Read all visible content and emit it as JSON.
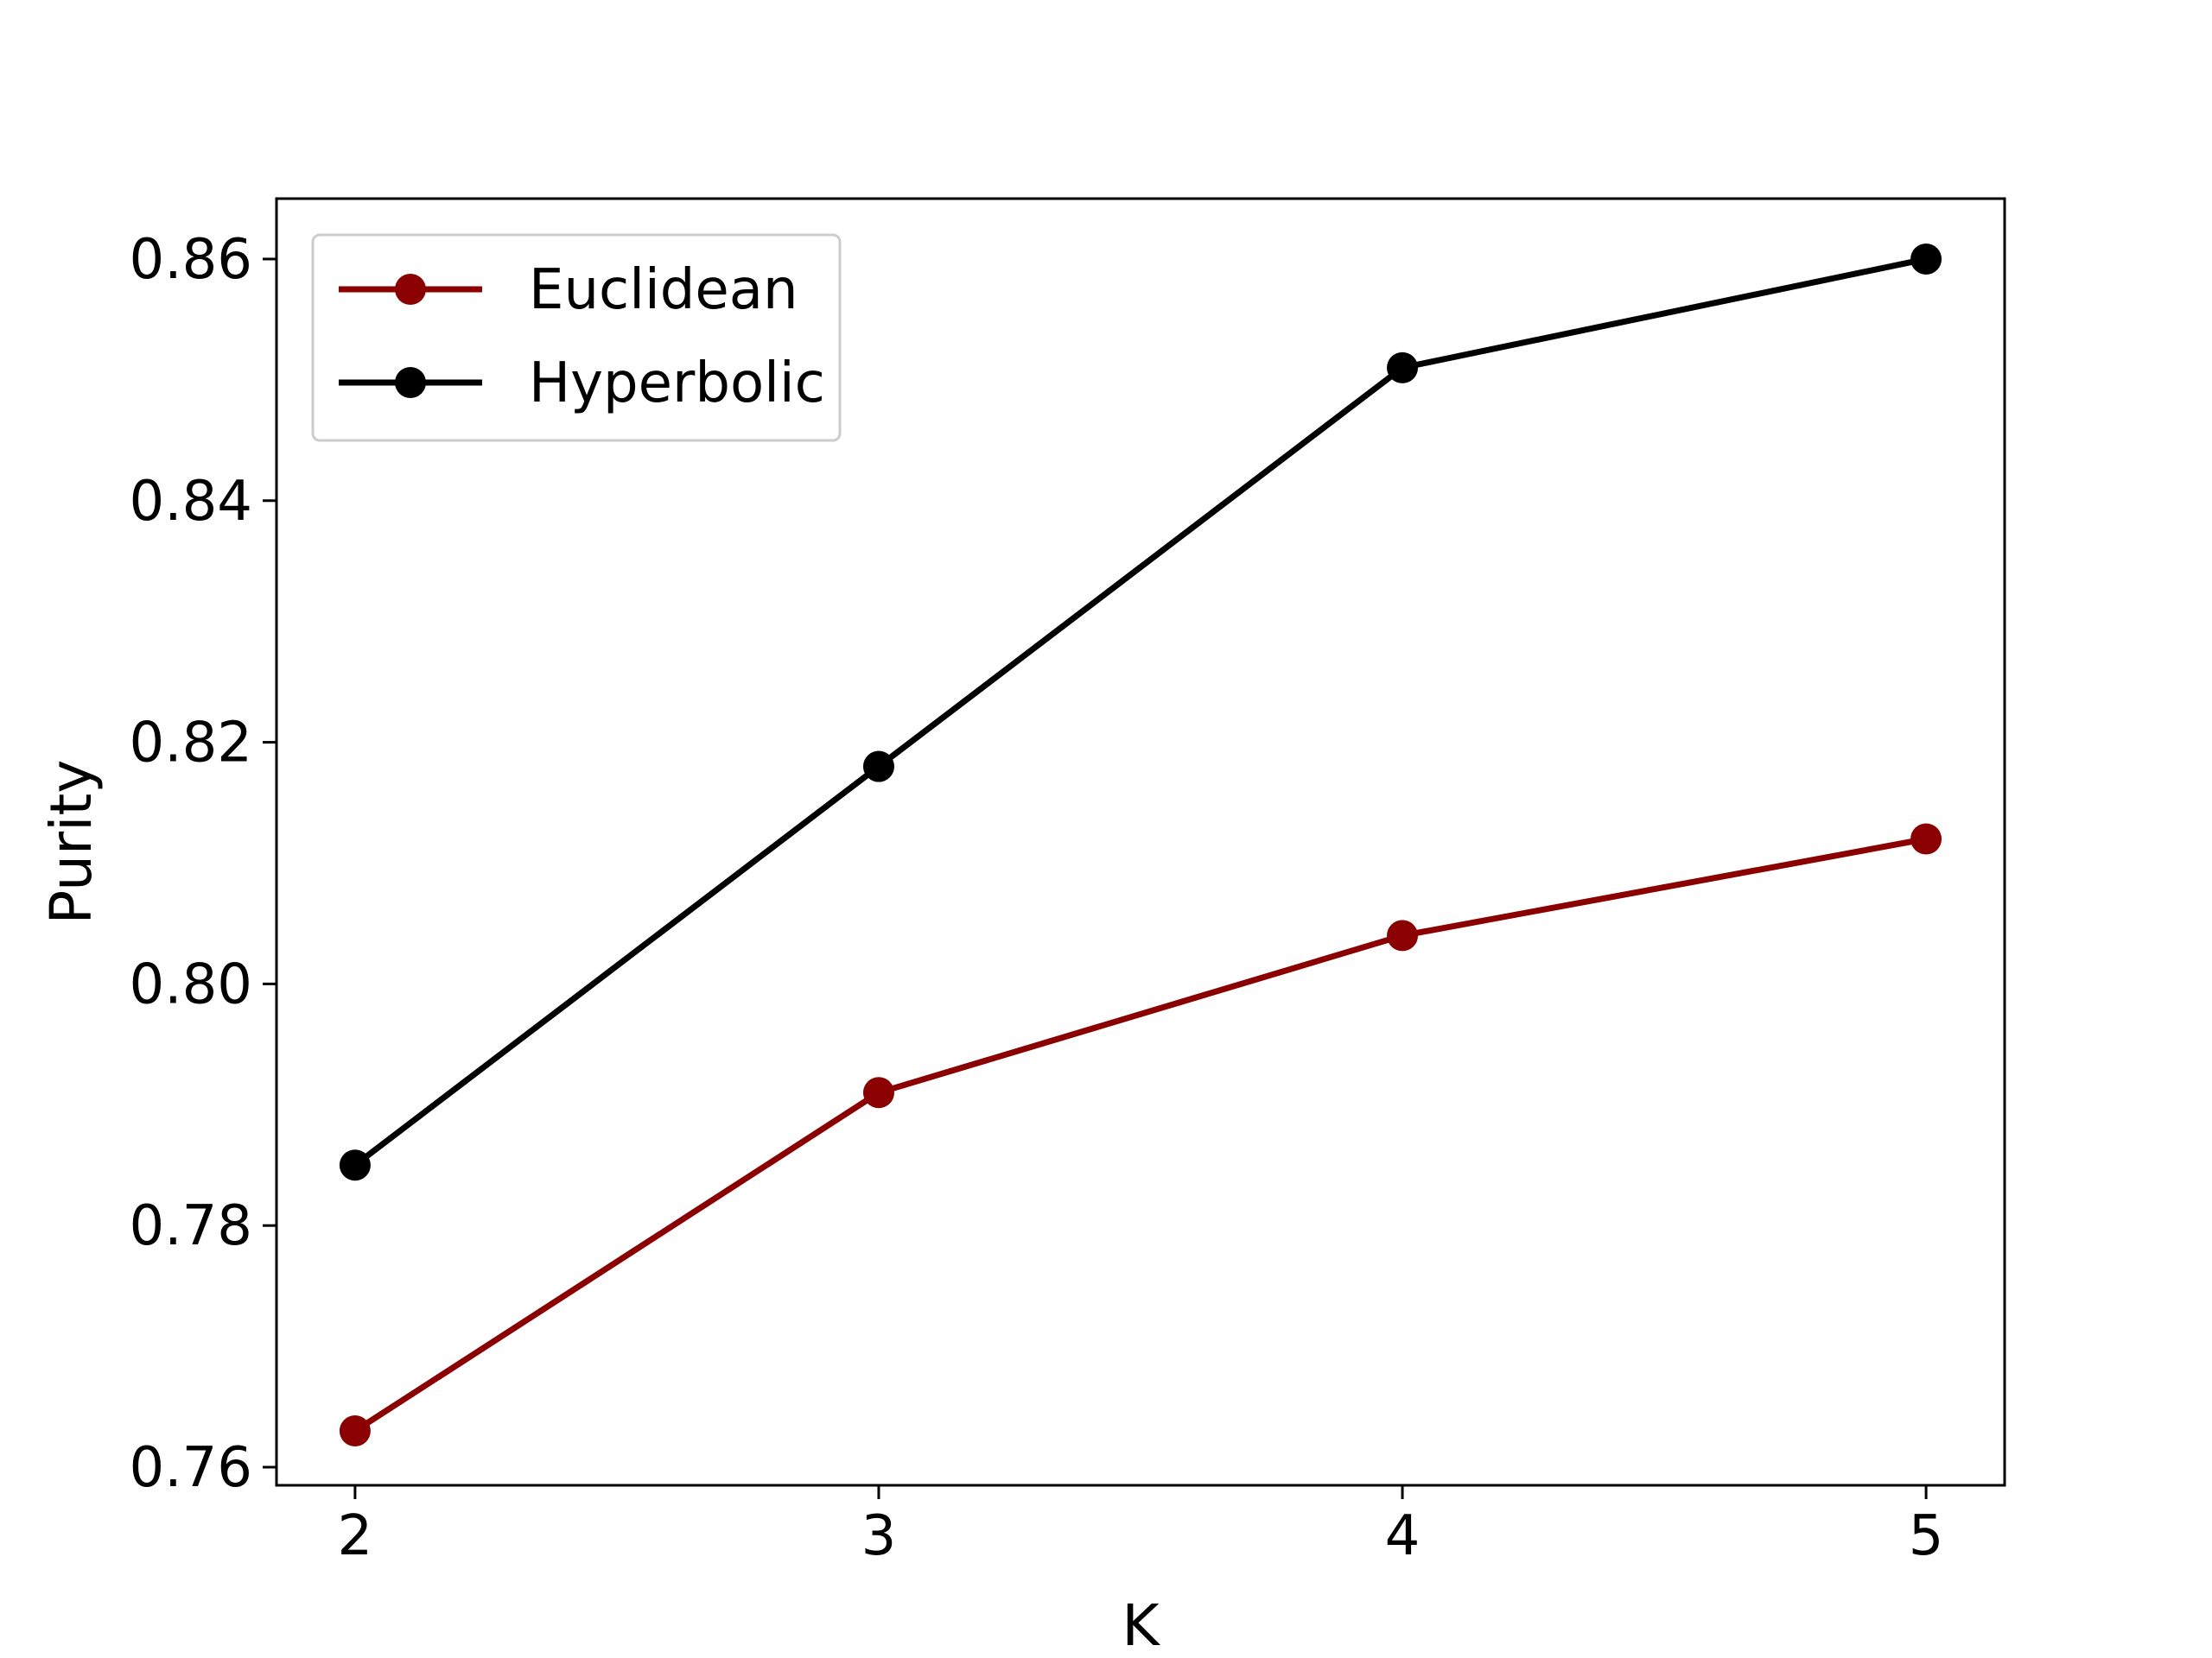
{
  "chart_data": {
    "type": "line",
    "title": "",
    "xlabel": "K",
    "ylabel": "Purity",
    "x": [
      2,
      3,
      4,
      5
    ],
    "x_ticks": [
      2,
      3,
      4,
      5
    ],
    "y_ticks": [
      0.76,
      0.78,
      0.8,
      0.82,
      0.84,
      0.86
    ],
    "y_tick_labels": [
      "0.76",
      "0.78",
      "0.80",
      "0.82",
      "0.84",
      "0.86"
    ],
    "xlim": [
      1.85,
      5.15
    ],
    "ylim": [
      0.7585,
      0.865
    ],
    "grid": false,
    "legend_position": "upper-left",
    "series": [
      {
        "name": "Euclidean",
        "values": [
          0.763,
          0.791,
          0.804,
          0.812
        ],
        "color": "#8b0000"
      },
      {
        "name": "Hyperbolic",
        "values": [
          0.785,
          0.818,
          0.851,
          0.86
        ],
        "color": "#000000"
      }
    ]
  }
}
